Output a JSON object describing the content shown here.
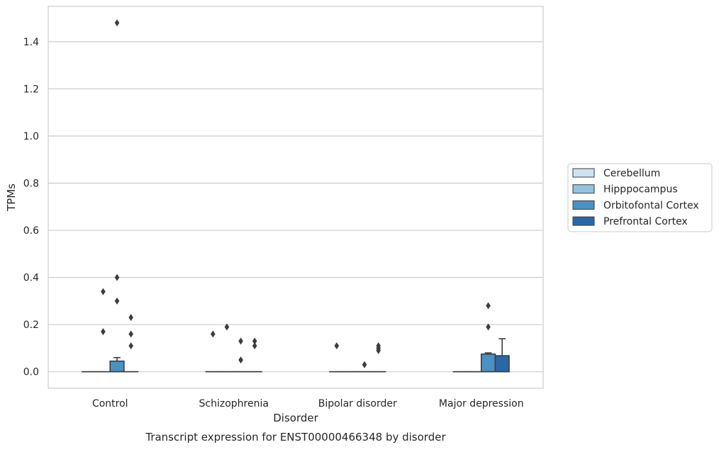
{
  "chart_data": {
    "type": "box",
    "caption": "Transcript expression for ENST00000466348 by disorder",
    "xlabel": "Disorder",
    "ylabel": "TPMs",
    "ylim": [
      -0.07,
      1.55
    ],
    "yticks": [
      0.0,
      0.2,
      0.4,
      0.6,
      0.8,
      1.0,
      1.2,
      1.4
    ],
    "ytick_labels": [
      "0.0",
      "0.2",
      "0.4",
      "0.6",
      "0.8",
      "1.0",
      "1.2",
      "1.4"
    ],
    "grid": "horizontal",
    "legend_placement": "right",
    "categories": [
      "Control",
      "Schizophrenia",
      "Bipolar disorder",
      "Major depression"
    ],
    "series": [
      {
        "name": "Cerebellum",
        "color": "#cfe1f2",
        "boxes": [
          {
            "q1": 0,
            "median": 0,
            "q3": 0,
            "whislo": 0,
            "whishi": 0,
            "fliers": []
          },
          {
            "q1": 0,
            "median": 0,
            "q3": 0,
            "whislo": 0,
            "whishi": 0,
            "fliers": [
              0.16
            ]
          },
          {
            "q1": 0,
            "median": 0,
            "q3": 0,
            "whislo": 0,
            "whishi": 0,
            "fliers": [
              0.11
            ]
          },
          {
            "q1": 0,
            "median": 0,
            "q3": 0,
            "whislo": 0,
            "whishi": 0,
            "fliers": []
          }
        ]
      },
      {
        "name": "Hipppocampus",
        "color": "#93c4de",
        "boxes": [
          {
            "q1": 0,
            "median": 0,
            "q3": 0,
            "whislo": 0,
            "whishi": 0,
            "fliers": [
              0.17,
              0.34
            ]
          },
          {
            "q1": 0,
            "median": 0,
            "q3": 0,
            "whislo": 0,
            "whishi": 0,
            "fliers": [
              0.19
            ]
          },
          {
            "q1": 0,
            "median": 0,
            "q3": 0,
            "whislo": 0,
            "whishi": 0,
            "fliers": []
          },
          {
            "q1": 0,
            "median": 0,
            "q3": 0,
            "whislo": 0,
            "whishi": 0,
            "fliers": []
          }
        ]
      },
      {
        "name": "Orbitofontal Cortex",
        "color": "#4b91c2",
        "boxes": [
          {
            "q1": 0,
            "median": 0,
            "q3": 0.045,
            "whislo": 0,
            "whishi": 0.06,
            "fliers": [
              0.3,
              0.4,
              1.48
            ]
          },
          {
            "q1": 0,
            "median": 0,
            "q3": 0,
            "whislo": 0,
            "whishi": 0,
            "fliers": [
              0.05,
              0.13
            ]
          },
          {
            "q1": 0,
            "median": 0,
            "q3": 0,
            "whislo": 0,
            "whishi": 0,
            "fliers": [
              0.03
            ]
          },
          {
            "q1": 0,
            "median": 0,
            "q3": 0.075,
            "whislo": 0,
            "whishi": 0.08,
            "fliers": [
              0.19,
              0.28
            ]
          }
        ]
      },
      {
        "name": "Prefrontal Cortex",
        "color": "#2a67a8",
        "boxes": [
          {
            "q1": 0,
            "median": 0,
            "q3": 0,
            "whislo": 0,
            "whishi": 0,
            "fliers": [
              0.11,
              0.16,
              0.23
            ]
          },
          {
            "q1": 0,
            "median": 0,
            "q3": 0,
            "whislo": 0,
            "whishi": 0,
            "fliers": [
              0.11,
              0.13
            ]
          },
          {
            "q1": 0,
            "median": 0,
            "q3": 0,
            "whislo": 0,
            "whishi": 0,
            "fliers": [
              0.09,
              0.1,
              0.11
            ]
          },
          {
            "q1": 0,
            "median": 0,
            "q3": 0.068,
            "whislo": 0,
            "whishi": 0.14,
            "fliers": []
          }
        ]
      }
    ]
  }
}
